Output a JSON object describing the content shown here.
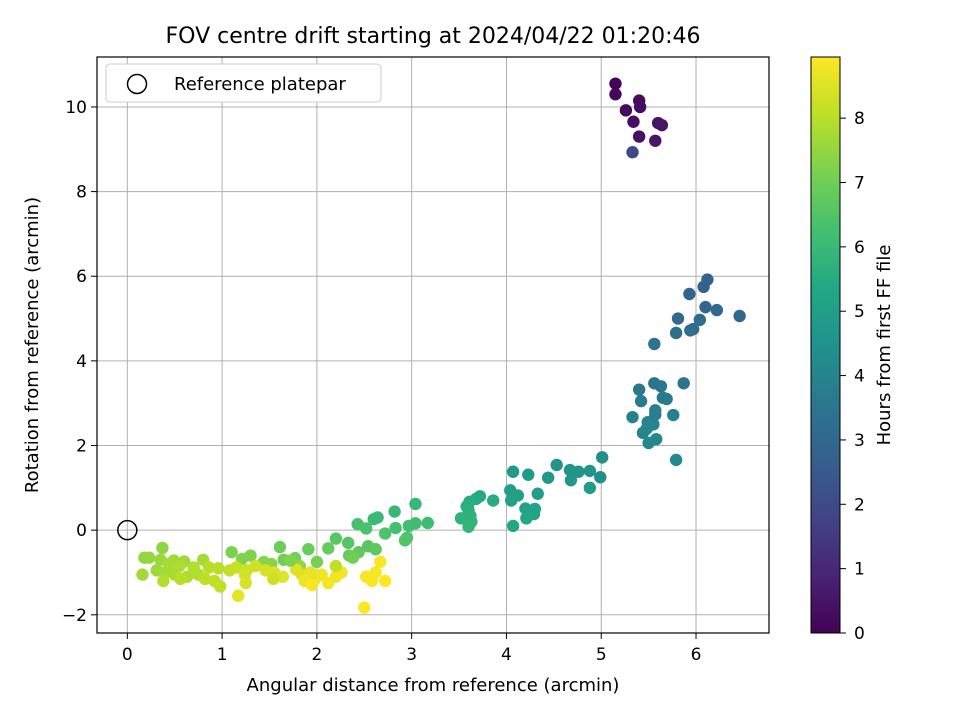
{
  "chart_data": {
    "type": "scatter",
    "title": "FOV centre drift starting at 2024/04/22 01:20:46",
    "xlabel": "Angular distance from reference (arcmin)",
    "ylabel": "Rotation from reference (arcmin)",
    "xlim": [
      -0.32,
      6.77
    ],
    "ylim": [
      -2.43,
      11.18
    ],
    "xticks": [
      0,
      1,
      2,
      3,
      4,
      5,
      6
    ],
    "yticks": [
      -2,
      0,
      2,
      4,
      6,
      8,
      10
    ],
    "grid": true,
    "legend": {
      "placement": "top-left",
      "entries": [
        "Reference platepar"
      ]
    },
    "reference": {
      "x": 0,
      "y": 0
    },
    "colorbar": {
      "label": "Hours from first FF file",
      "range": [
        0,
        8.95
      ],
      "ticks": [
        0,
        1,
        2,
        3,
        4,
        5,
        6,
        7,
        8
      ],
      "colormap": "viridis"
    },
    "points": [
      {
        "x": 5.15,
        "y": 10.55,
        "h": 0.1
      },
      {
        "x": 5.15,
        "y": 10.3,
        "h": 0.15
      },
      {
        "x": 5.26,
        "y": 9.92,
        "h": 0.2
      },
      {
        "x": 5.4,
        "y": 10.15,
        "h": 0.25
      },
      {
        "x": 5.41,
        "y": 10.0,
        "h": 0.3
      },
      {
        "x": 5.34,
        "y": 9.65,
        "h": 0.35
      },
      {
        "x": 5.4,
        "y": 9.3,
        "h": 0.4
      },
      {
        "x": 5.6,
        "y": 9.62,
        "h": 0.45
      },
      {
        "x": 5.64,
        "y": 9.57,
        "h": 0.5
      },
      {
        "x": 5.57,
        "y": 9.2,
        "h": 0.55
      },
      {
        "x": 5.33,
        "y": 8.93,
        "h": 2.0
      },
      {
        "x": 6.12,
        "y": 5.92,
        "h": 2.8
      },
      {
        "x": 6.08,
        "y": 5.75,
        "h": 2.85
      },
      {
        "x": 5.93,
        "y": 5.58,
        "h": 2.9
      },
      {
        "x": 6.1,
        "y": 5.27,
        "h": 2.95
      },
      {
        "x": 6.22,
        "y": 5.2,
        "h": 3.0
      },
      {
        "x": 6.46,
        "y": 5.06,
        "h": 3.05
      },
      {
        "x": 5.81,
        "y": 5.0,
        "h": 3.1
      },
      {
        "x": 6.04,
        "y": 4.97,
        "h": 3.15
      },
      {
        "x": 5.97,
        "y": 4.75,
        "h": 3.2
      },
      {
        "x": 5.94,
        "y": 4.72,
        "h": 3.25
      },
      {
        "x": 5.79,
        "y": 4.66,
        "h": 3.3
      },
      {
        "x": 5.56,
        "y": 4.4,
        "h": 3.35
      },
      {
        "x": 5.87,
        "y": 3.47,
        "h": 3.4
      },
      {
        "x": 5.56,
        "y": 3.47,
        "h": 3.45
      },
      {
        "x": 5.63,
        "y": 3.4,
        "h": 3.5
      },
      {
        "x": 5.4,
        "y": 3.32,
        "h": 3.55
      },
      {
        "x": 5.65,
        "y": 3.13,
        "h": 3.6
      },
      {
        "x": 5.69,
        "y": 3.1,
        "h": 3.65
      },
      {
        "x": 5.42,
        "y": 3.05,
        "h": 3.7
      },
      {
        "x": 5.57,
        "y": 2.83,
        "h": 3.75
      },
      {
        "x": 5.57,
        "y": 2.73,
        "h": 3.8
      },
      {
        "x": 5.76,
        "y": 2.72,
        "h": 3.85
      },
      {
        "x": 5.33,
        "y": 2.67,
        "h": 3.9
      },
      {
        "x": 5.49,
        "y": 2.55,
        "h": 3.95
      },
      {
        "x": 5.55,
        "y": 2.5,
        "h": 4.0
      },
      {
        "x": 5.44,
        "y": 2.3,
        "h": 4.05
      },
      {
        "x": 5.48,
        "y": 2.4,
        "h": 4.1
      },
      {
        "x": 5.58,
        "y": 2.15,
        "h": 4.15
      },
      {
        "x": 5.5,
        "y": 2.06,
        "h": 4.2
      },
      {
        "x": 5.79,
        "y": 1.66,
        "h": 4.25
      },
      {
        "x": 5.01,
        "y": 1.72,
        "h": 4.4
      },
      {
        "x": 4.99,
        "y": 1.25,
        "h": 4.45
      },
      {
        "x": 4.53,
        "y": 1.54,
        "h": 4.5
      },
      {
        "x": 4.67,
        "y": 1.42,
        "h": 4.55
      },
      {
        "x": 4.76,
        "y": 1.38,
        "h": 4.6
      },
      {
        "x": 4.88,
        "y": 1.4,
        "h": 4.65
      },
      {
        "x": 4.68,
        "y": 1.18,
        "h": 4.7
      },
      {
        "x": 4.44,
        "y": 1.24,
        "h": 4.75
      },
      {
        "x": 4.07,
        "y": 1.38,
        "h": 4.8
      },
      {
        "x": 4.23,
        "y": 1.31,
        "h": 4.85
      },
      {
        "x": 4.88,
        "y": 1.0,
        "h": 4.9
      },
      {
        "x": 4.33,
        "y": 0.86,
        "h": 4.95
      },
      {
        "x": 4.04,
        "y": 0.94,
        "h": 5.0
      },
      {
        "x": 4.12,
        "y": 0.82,
        "h": 5.05
      },
      {
        "x": 4.05,
        "y": 0.7,
        "h": 5.1
      },
      {
        "x": 4.2,
        "y": 0.51,
        "h": 5.15
      },
      {
        "x": 4.3,
        "y": 0.5,
        "h": 5.2
      },
      {
        "x": 4.29,
        "y": 0.38,
        "h": 5.25
      },
      {
        "x": 4.21,
        "y": 0.28,
        "h": 5.3
      },
      {
        "x": 4.07,
        "y": 0.1,
        "h": 5.35
      },
      {
        "x": 3.72,
        "y": 0.8,
        "h": 5.4
      },
      {
        "x": 3.68,
        "y": 0.74,
        "h": 5.45
      },
      {
        "x": 3.86,
        "y": 0.7,
        "h": 5.5
      },
      {
        "x": 3.61,
        "y": 0.67,
        "h": 5.55
      },
      {
        "x": 3.58,
        "y": 0.56,
        "h": 5.6
      },
      {
        "x": 3.6,
        "y": 0.48,
        "h": 5.65
      },
      {
        "x": 3.62,
        "y": 0.34,
        "h": 5.7
      },
      {
        "x": 3.52,
        "y": 0.28,
        "h": 5.75
      },
      {
        "x": 3.63,
        "y": 0.2,
        "h": 5.8
      },
      {
        "x": 3.6,
        "y": 0.08,
        "h": 5.85
      },
      {
        "x": 3.04,
        "y": 0.62,
        "h": 5.9
      },
      {
        "x": 2.82,
        "y": 0.44,
        "h": 5.95
      },
      {
        "x": 2.64,
        "y": 0.3,
        "h": 6.0
      },
      {
        "x": 2.6,
        "y": 0.26,
        "h": 6.05
      },
      {
        "x": 3.17,
        "y": 0.17,
        "h": 6.1
      },
      {
        "x": 3.04,
        "y": 0.16,
        "h": 6.15
      },
      {
        "x": 2.97,
        "y": 0.1,
        "h": 6.2
      },
      {
        "x": 2.83,
        "y": 0.05,
        "h": 6.25
      },
      {
        "x": 2.43,
        "y": 0.14,
        "h": 6.3
      },
      {
        "x": 2.52,
        "y": 0.04,
        "h": 6.35
      },
      {
        "x": 2.72,
        "y": -0.08,
        "h": 6.4
      },
      {
        "x": 2.95,
        "y": -0.18,
        "h": 6.45
      },
      {
        "x": 2.93,
        "y": -0.24,
        "h": 6.5
      },
      {
        "x": 2.33,
        "y": -0.3,
        "h": 6.55
      },
      {
        "x": 2.2,
        "y": -0.2,
        "h": 6.6
      },
      {
        "x": 2.54,
        "y": -0.38,
        "h": 6.65
      },
      {
        "x": 2.62,
        "y": -0.45,
        "h": 6.7
      },
      {
        "x": 2.44,
        "y": -0.52,
        "h": 6.75
      },
      {
        "x": 2.34,
        "y": -0.6,
        "h": 6.8
      },
      {
        "x": 2.12,
        "y": -0.43,
        "h": 6.85
      },
      {
        "x": 1.91,
        "y": -0.45,
        "h": 6.9
      },
      {
        "x": 1.61,
        "y": -0.4,
        "h": 6.95
      },
      {
        "x": 1.65,
        "y": -0.7,
        "h": 7.0
      },
      {
        "x": 1.77,
        "y": -0.66,
        "h": 7.05
      },
      {
        "x": 2.0,
        "y": -0.75,
        "h": 7.1
      },
      {
        "x": 1.1,
        "y": -0.52,
        "h": 7.15
      },
      {
        "x": 1.3,
        "y": -0.6,
        "h": 7.2
      },
      {
        "x": 1.21,
        "y": -0.68,
        "h": 7.25
      },
      {
        "x": 1.44,
        "y": -0.75,
        "h": 7.3
      },
      {
        "x": 1.52,
        "y": -0.8,
        "h": 7.35
      },
      {
        "x": 1.82,
        "y": -0.85,
        "h": 7.4
      },
      {
        "x": 0.37,
        "y": -0.42,
        "h": 7.45
      },
      {
        "x": 0.18,
        "y": -0.65,
        "h": 7.5
      },
      {
        "x": 0.23,
        "y": -0.65,
        "h": 7.55
      },
      {
        "x": 0.35,
        "y": -0.7,
        "h": 7.6
      },
      {
        "x": 0.49,
        "y": -0.72,
        "h": 7.65
      },
      {
        "x": 0.6,
        "y": -0.74,
        "h": 7.7
      },
      {
        "x": 0.8,
        "y": -0.7,
        "h": 7.75
      },
      {
        "x": 0.44,
        "y": -0.8,
        "h": 7.8
      },
      {
        "x": 0.55,
        "y": -0.85,
        "h": 7.85
      },
      {
        "x": 0.7,
        "y": -0.88,
        "h": 7.9
      },
      {
        "x": 0.86,
        "y": -0.88,
        "h": 7.95
      },
      {
        "x": 0.96,
        "y": -0.9,
        "h": 8.0
      },
      {
        "x": 0.31,
        "y": -0.95,
        "h": 7.6
      },
      {
        "x": 0.16,
        "y": -1.05,
        "h": 7.7
      },
      {
        "x": 0.4,
        "y": -1.0,
        "h": 7.75
      },
      {
        "x": 0.5,
        "y": -1.05,
        "h": 7.8
      },
      {
        "x": 0.63,
        "y": -1.1,
        "h": 7.85
      },
      {
        "x": 0.75,
        "y": -1.05,
        "h": 7.9
      },
      {
        "x": 0.38,
        "y": -1.2,
        "h": 7.95
      },
      {
        "x": 0.56,
        "y": -1.15,
        "h": 8.0
      },
      {
        "x": 0.82,
        "y": -1.15,
        "h": 8.05
      },
      {
        "x": 0.92,
        "y": -1.2,
        "h": 8.1
      },
      {
        "x": 0.98,
        "y": -1.33,
        "h": 8.15
      },
      {
        "x": 1.08,
        "y": -0.95,
        "h": 8.1
      },
      {
        "x": 1.15,
        "y": -0.88,
        "h": 8.2
      },
      {
        "x": 1.26,
        "y": -0.95,
        "h": 8.25
      },
      {
        "x": 1.35,
        "y": -0.85,
        "h": 8.3
      },
      {
        "x": 1.24,
        "y": -1.05,
        "h": 8.35
      },
      {
        "x": 1.46,
        "y": -0.95,
        "h": 8.4
      },
      {
        "x": 1.55,
        "y": -1.0,
        "h": 8.45
      },
      {
        "x": 1.64,
        "y": -1.1,
        "h": 8.5
      },
      {
        "x": 1.54,
        "y": -1.15,
        "h": 8.3
      },
      {
        "x": 1.25,
        "y": -1.25,
        "h": 8.4
      },
      {
        "x": 1.17,
        "y": -1.55,
        "h": 8.6
      },
      {
        "x": 1.78,
        "y": -0.93,
        "h": 8.5
      },
      {
        "x": 1.84,
        "y": -1.05,
        "h": 8.55
      },
      {
        "x": 1.93,
        "y": -1.0,
        "h": 8.6
      },
      {
        "x": 1.98,
        "y": -1.15,
        "h": 8.65
      },
      {
        "x": 1.87,
        "y": -1.2,
        "h": 8.7
      },
      {
        "x": 2.05,
        "y": -1.05,
        "h": 8.75
      },
      {
        "x": 2.12,
        "y": -1.25,
        "h": 8.8
      },
      {
        "x": 2.2,
        "y": -1.1,
        "h": 8.75
      },
      {
        "x": 2.26,
        "y": -1.0,
        "h": 8.8
      },
      {
        "x": 1.95,
        "y": -1.3,
        "h": 8.85
      },
      {
        "x": 2.52,
        "y": -1.1,
        "h": 8.85
      },
      {
        "x": 2.58,
        "y": -1.2,
        "h": 8.9
      },
      {
        "x": 2.62,
        "y": -1.0,
        "h": 8.85
      },
      {
        "x": 2.67,
        "y": -0.75,
        "h": 8.9
      },
      {
        "x": 2.72,
        "y": -1.2,
        "h": 8.95
      },
      {
        "x": 2.5,
        "y": -1.83,
        "h": 8.95
      },
      {
        "x": 2.2,
        "y": -0.85,
        "h": 8.1
      },
      {
        "x": 2.38,
        "y": -0.65,
        "h": 7.0
      },
      {
        "x": 1.72,
        "y": -0.72,
        "h": 7.2
      }
    ]
  }
}
